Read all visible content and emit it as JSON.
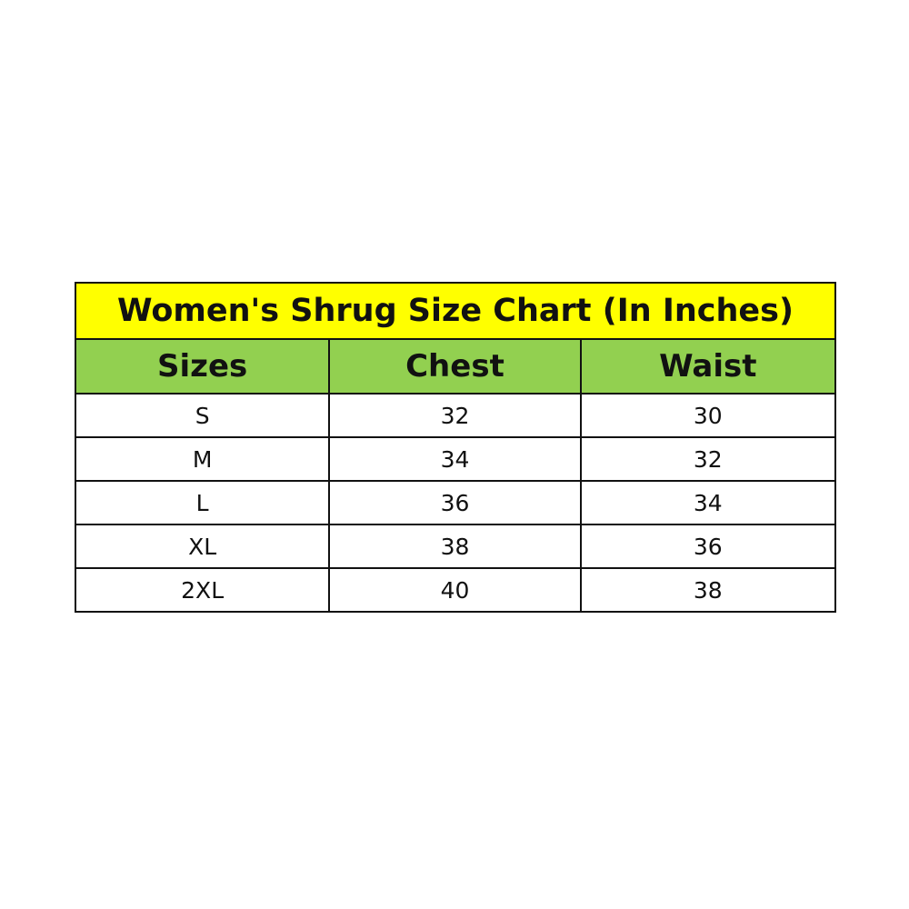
{
  "title": "Women's Shrug Size Chart (In Inches)",
  "colors": {
    "title_bg": "#ffff00",
    "header_bg": "#92d050"
  },
  "columns": [
    "Sizes",
    "Chest",
    "Waist"
  ],
  "rows": [
    [
      "S",
      "32",
      "30"
    ],
    [
      "M",
      "34",
      "32"
    ],
    [
      "L",
      "36",
      "34"
    ],
    [
      "XL",
      "38",
      "36"
    ],
    [
      "2XL",
      "40",
      "38"
    ]
  ]
}
